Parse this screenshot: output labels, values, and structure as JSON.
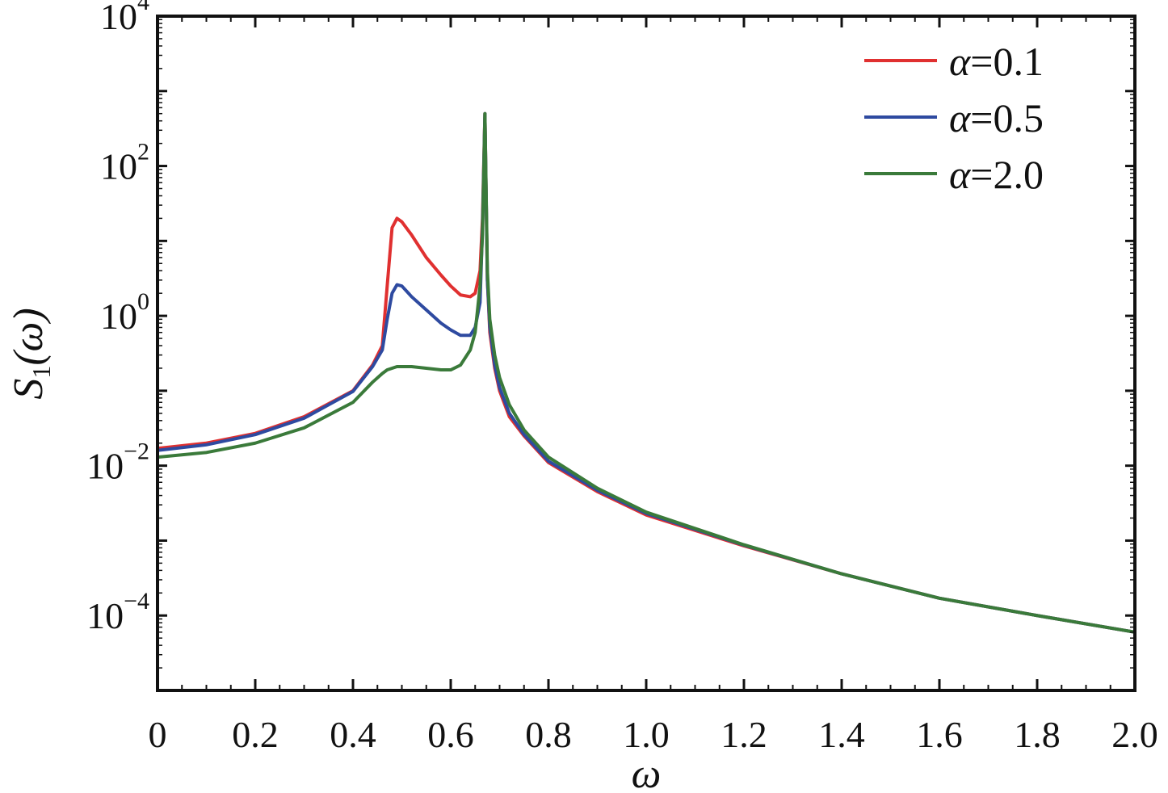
{
  "chart_data": {
    "type": "line",
    "title": "",
    "xlabel": "ω",
    "ylabel_main": "S",
    "ylabel_sub": "1",
    "ylabel_tail": "(ω)",
    "xlim": [
      0,
      2.0
    ],
    "ylim_log10": [
      -5,
      4
    ],
    "y_scale": "log",
    "grid": false,
    "legend_placement": "top-right",
    "x_ticks": [
      0,
      0.2,
      0.4,
      0.6,
      0.8,
      1.0,
      1.2,
      1.4,
      1.6,
      1.8,
      2.0
    ],
    "x_tick_labels": [
      "0",
      "0.2",
      "0.4",
      "0.6",
      "0.8",
      "1.0",
      "1.2",
      "1.4",
      "1.6",
      "1.8",
      "2.0"
    ],
    "y_ticks": [
      {
        "base": "10",
        "exp": "4",
        "value": 10000
      },
      {
        "base": "10",
        "exp": "2",
        "value": 100
      },
      {
        "base": "10",
        "exp": "0",
        "value": 1
      },
      {
        "base": "10",
        "exp": "−2",
        "value": 0.01
      },
      {
        "base": "10",
        "exp": "−4",
        "value": 0.0001
      }
    ],
    "x": [
      0,
      0.1,
      0.2,
      0.3,
      0.4,
      0.44,
      0.46,
      0.47,
      0.48,
      0.49,
      0.5,
      0.52,
      0.55,
      0.58,
      0.6,
      0.62,
      0.64,
      0.65,
      0.66,
      0.665,
      0.67,
      0.675,
      0.68,
      0.69,
      0.7,
      0.72,
      0.75,
      0.8,
      0.9,
      1.0,
      1.2,
      1.4,
      1.6,
      1.8,
      2.0
    ],
    "series": [
      {
        "name_symbol": "α",
        "name_value": "=0.1",
        "color": "#e03030",
        "values": [
          0.017,
          0.02,
          0.027,
          0.045,
          0.1,
          0.22,
          0.4,
          2.5,
          15,
          20,
          18,
          12,
          6,
          3.5,
          2.5,
          1.9,
          1.8,
          2.0,
          4,
          20,
          500,
          3,
          0.6,
          0.2,
          0.1,
          0.045,
          0.025,
          0.011,
          0.0045,
          0.0022,
          0.00085,
          0.00036,
          0.00017,
          0.0001,
          6e-05
        ]
      },
      {
        "name_symbol": "α",
        "name_value": "=0.5",
        "color": "#2e4aa0",
        "values": [
          0.016,
          0.019,
          0.026,
          0.043,
          0.098,
          0.21,
          0.35,
          0.9,
          2.0,
          2.6,
          2.5,
          1.8,
          1.2,
          0.8,
          0.65,
          0.55,
          0.55,
          0.7,
          1.5,
          15,
          500,
          3,
          0.7,
          0.22,
          0.11,
          0.05,
          0.026,
          0.0115,
          0.0047,
          0.0023,
          0.00087,
          0.00036,
          0.00017,
          0.0001,
          6e-05
        ]
      },
      {
        "name_symbol": "α",
        "name_value": "=2.0",
        "color": "#3a7a3a",
        "values": [
          0.013,
          0.015,
          0.02,
          0.032,
          0.07,
          0.13,
          0.17,
          0.19,
          0.2,
          0.21,
          0.21,
          0.21,
          0.2,
          0.19,
          0.19,
          0.22,
          0.35,
          0.6,
          2.5,
          12,
          500,
          4,
          0.9,
          0.3,
          0.15,
          0.065,
          0.03,
          0.013,
          0.005,
          0.0024,
          0.00088,
          0.00036,
          0.00017,
          0.0001,
          6e-05
        ]
      }
    ]
  }
}
